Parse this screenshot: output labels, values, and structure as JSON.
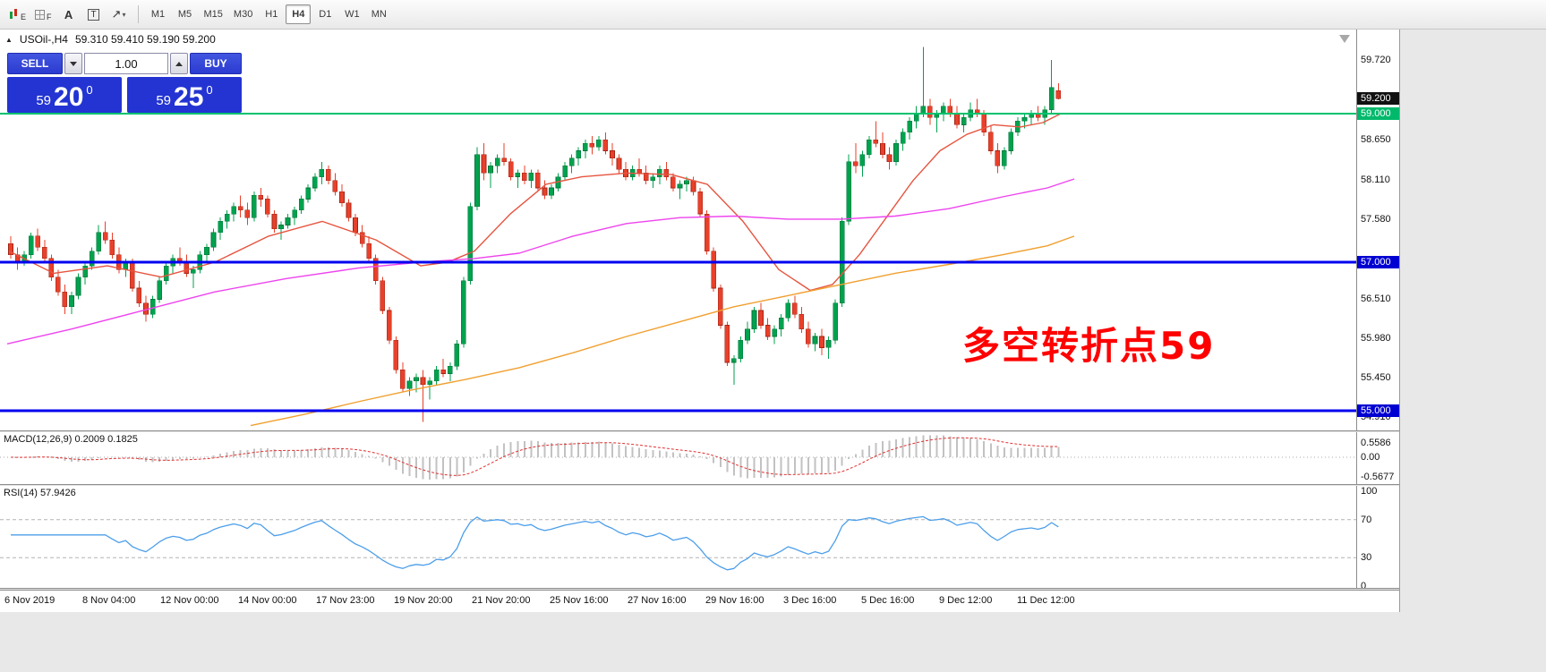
{
  "toolbar": {
    "icon_buttons": [
      {
        "name": "candle-chart-icon",
        "letter": "E"
      },
      {
        "name": "grid-icon",
        "letter": "F"
      },
      {
        "name": "text-tool-icon",
        "letter": "A"
      },
      {
        "name": "label-tool-icon",
        "letter": "T"
      },
      {
        "name": "arrow-tool-icon",
        "letter": "↗",
        "caret": "▾"
      }
    ],
    "timeframes": [
      "M1",
      "M5",
      "M15",
      "M30",
      "H1",
      "H4",
      "D1",
      "W1",
      "MN"
    ],
    "active_timeframe": "H4"
  },
  "chart": {
    "title": {
      "symbol": "USOil-,H4",
      "ohlc": "59.310 59.410 59.190 59.200"
    },
    "annotation": {
      "text": "多空转折点59",
      "color": "#ff0000"
    },
    "up_color": "#00A24E",
    "up_stroke": "#00753A",
    "down_color": "#E8402A",
    "down_stroke": "#A32315",
    "axis_ticks": [
      "59.720",
      "58.650",
      "58.110",
      "57.580",
      "56.510",
      "55.980",
      "55.450",
      "54.910"
    ],
    "current_price_badge": {
      "price": 59.2,
      "label": "59.200",
      "bg": "#111111"
    },
    "hlines": [
      {
        "price": 59.0,
        "label": "59.000",
        "color": "#00C26E",
        "badge_bg": "#00B96B",
        "width": 2
      },
      {
        "price": 57.0,
        "label": "57.000",
        "color": "#0000F0",
        "badge_bg": "#0000D2",
        "width": 2.6
      },
      {
        "price": 55.0,
        "label": "55.000",
        "color": "#0000F0",
        "badge_bg": "#0000D2",
        "width": 2.6
      }
    ],
    "ma_lines": [
      {
        "name": "ma-fast-red",
        "color": "#E65540",
        "points": [
          [
            10,
            57.15
          ],
          [
            60,
            56.85
          ],
          [
            120,
            56.95
          ],
          [
            180,
            56.8
          ],
          [
            240,
            57.0
          ],
          [
            300,
            57.35
          ],
          [
            360,
            57.55
          ],
          [
            420,
            57.3
          ],
          [
            470,
            56.95
          ],
          [
            500,
            57.0
          ],
          [
            530,
            57.15
          ],
          [
            570,
            57.65
          ],
          [
            610,
            58.05
          ],
          [
            650,
            58.15
          ],
          [
            700,
            58.2
          ],
          [
            750,
            58.18
          ],
          [
            790,
            58.05
          ],
          [
            830,
            57.55
          ],
          [
            870,
            56.9
          ],
          [
            905,
            56.62
          ],
          [
            930,
            56.7
          ],
          [
            960,
            57.1
          ],
          [
            990,
            57.6
          ],
          [
            1020,
            58.1
          ],
          [
            1050,
            58.5
          ],
          [
            1080,
            58.72
          ],
          [
            1110,
            58.85
          ],
          [
            1140,
            58.82
          ],
          [
            1165,
            58.88
          ],
          [
            1185,
            59.0
          ]
        ]
      },
      {
        "name": "ma-mid-magenta",
        "color": "#EE44EE",
        "points": [
          [
            8,
            55.9
          ],
          [
            80,
            56.1
          ],
          [
            160,
            56.35
          ],
          [
            240,
            56.6
          ],
          [
            320,
            56.78
          ],
          [
            400,
            56.92
          ],
          [
            470,
            57.0
          ],
          [
            530,
            57.05
          ],
          [
            580,
            57.12
          ],
          [
            640,
            57.35
          ],
          [
            700,
            57.52
          ],
          [
            760,
            57.6
          ],
          [
            820,
            57.62
          ],
          [
            880,
            57.58
          ],
          [
            940,
            57.58
          ],
          [
            1000,
            57.62
          ],
          [
            1060,
            57.72
          ],
          [
            1120,
            57.88
          ],
          [
            1170,
            58.0
          ],
          [
            1200,
            58.12
          ]
        ]
      },
      {
        "name": "ma-slow-orange",
        "color": "#F0A030",
        "points": [
          [
            280,
            54.8
          ],
          [
            340,
            54.95
          ],
          [
            400,
            55.12
          ],
          [
            460,
            55.28
          ],
          [
            520,
            55.42
          ],
          [
            580,
            55.58
          ],
          [
            640,
            55.78
          ],
          [
            700,
            56.0
          ],
          [
            760,
            56.2
          ],
          [
            820,
            56.4
          ],
          [
            880,
            56.55
          ],
          [
            940,
            56.7
          ],
          [
            1000,
            56.85
          ],
          [
            1060,
            56.97
          ],
          [
            1120,
            57.1
          ],
          [
            1170,
            57.22
          ],
          [
            1200,
            57.35
          ]
        ]
      }
    ],
    "candles": [
      [
        57.25,
        57.35,
        57.05,
        57.1
      ],
      [
        57.1,
        57.2,
        56.9,
        57.0
      ],
      [
        57.0,
        57.15,
        56.95,
        57.1
      ],
      [
        57.1,
        57.4,
        57.05,
        57.35
      ],
      [
        57.35,
        57.45,
        57.15,
        57.2
      ],
      [
        57.2,
        57.3,
        57.0,
        57.05
      ],
      [
        57.05,
        57.1,
        56.75,
        56.8
      ],
      [
        56.8,
        56.9,
        56.55,
        56.6
      ],
      [
        56.6,
        56.7,
        56.3,
        56.4
      ],
      [
        56.4,
        56.6,
        56.3,
        56.55
      ],
      [
        56.55,
        56.85,
        56.5,
        56.8
      ],
      [
        56.8,
        57.0,
        56.7,
        56.95
      ],
      [
        56.95,
        57.2,
        56.9,
        57.15
      ],
      [
        57.15,
        57.5,
        57.1,
        57.4
      ],
      [
        57.4,
        57.55,
        57.25,
        57.3
      ],
      [
        57.3,
        57.4,
        57.05,
        57.1
      ],
      [
        57.1,
        57.2,
        56.85,
        56.9
      ],
      [
        56.9,
        57.05,
        56.8,
        57.0
      ],
      [
        57.0,
        57.05,
        56.6,
        56.65
      ],
      [
        56.65,
        56.75,
        56.4,
        56.45
      ],
      [
        56.45,
        56.55,
        56.2,
        56.3
      ],
      [
        56.3,
        56.55,
        56.25,
        56.5
      ],
      [
        56.5,
        56.8,
        56.45,
        56.75
      ],
      [
        56.75,
        57.0,
        56.7,
        56.95
      ],
      [
        56.95,
        57.1,
        56.85,
        57.05
      ],
      [
        57.05,
        57.2,
        56.95,
        57.0
      ],
      [
        57.0,
        57.1,
        56.8,
        56.85
      ],
      [
        56.85,
        56.95,
        56.65,
        56.9
      ],
      [
        56.9,
        57.15,
        56.85,
        57.1
      ],
      [
        57.1,
        57.25,
        57.0,
        57.2
      ],
      [
        57.2,
        57.45,
        57.15,
        57.4
      ],
      [
        57.4,
        57.6,
        57.3,
        57.55
      ],
      [
        57.55,
        57.7,
        57.45,
        57.65
      ],
      [
        57.65,
        57.8,
        57.55,
        57.75
      ],
      [
        57.75,
        57.9,
        57.6,
        57.7
      ],
      [
        57.7,
        57.8,
        57.5,
        57.6
      ],
      [
        57.6,
        57.95,
        57.55,
        57.9
      ],
      [
        57.9,
        58.0,
        57.75,
        57.85
      ],
      [
        57.85,
        57.9,
        57.6,
        57.65
      ],
      [
        57.65,
        57.7,
        57.4,
        57.45
      ],
      [
        57.45,
        57.55,
        57.3,
        57.5
      ],
      [
        57.5,
        57.65,
        57.45,
        57.6
      ],
      [
        57.6,
        57.75,
        57.5,
        57.7
      ],
      [
        57.7,
        57.9,
        57.65,
        57.85
      ],
      [
        57.85,
        58.05,
        57.8,
        58.0
      ],
      [
        58.0,
        58.2,
        57.95,
        58.15
      ],
      [
        58.15,
        58.35,
        58.05,
        58.25
      ],
      [
        58.25,
        58.3,
        58.05,
        58.1
      ],
      [
        58.1,
        58.2,
        57.9,
        57.95
      ],
      [
        57.95,
        58.05,
        57.75,
        57.8
      ],
      [
        57.8,
        57.85,
        57.55,
        57.6
      ],
      [
        57.6,
        57.65,
        57.35,
        57.4
      ],
      [
        57.4,
        57.5,
        57.2,
        57.25
      ],
      [
        57.25,
        57.35,
        57.0,
        57.05
      ],
      [
        57.05,
        57.1,
        56.7,
        56.75
      ],
      [
        56.75,
        56.8,
        56.3,
        56.35
      ],
      [
        56.35,
        56.4,
        55.9,
        55.95
      ],
      [
        55.95,
        56.0,
        55.5,
        55.55
      ],
      [
        55.55,
        55.65,
        55.25,
        55.3
      ],
      [
        55.3,
        55.45,
        55.2,
        55.4
      ],
      [
        55.4,
        55.5,
        55.25,
        55.45
      ],
      [
        55.45,
        55.55,
        54.85,
        55.35
      ],
      [
        55.35,
        55.45,
        55.15,
        55.4
      ],
      [
        55.4,
        55.6,
        55.35,
        55.55
      ],
      [
        55.55,
        55.7,
        55.45,
        55.5
      ],
      [
        55.5,
        55.65,
        55.4,
        55.6
      ],
      [
        55.6,
        55.95,
        55.55,
        55.9
      ],
      [
        55.9,
        56.8,
        55.85,
        56.75
      ],
      [
        56.75,
        57.8,
        56.7,
        57.75
      ],
      [
        57.75,
        58.55,
        57.7,
        58.45
      ],
      [
        58.45,
        58.6,
        58.1,
        58.2
      ],
      [
        58.2,
        58.35,
        58.0,
        58.3
      ],
      [
        58.3,
        58.45,
        58.2,
        58.4
      ],
      [
        58.4,
        58.6,
        58.3,
        58.35
      ],
      [
        58.35,
        58.4,
        58.1,
        58.15
      ],
      [
        58.15,
        58.25,
        58.0,
        58.2
      ],
      [
        58.2,
        58.3,
        58.05,
        58.1
      ],
      [
        58.1,
        58.25,
        58.0,
        58.2
      ],
      [
        58.2,
        58.25,
        57.95,
        58.0
      ],
      [
        58.0,
        58.1,
        57.85,
        57.9
      ],
      [
        57.9,
        58.05,
        57.85,
        58.0
      ],
      [
        58.0,
        58.2,
        57.95,
        58.15
      ],
      [
        58.15,
        58.35,
        58.1,
        58.3
      ],
      [
        58.3,
        58.45,
        58.2,
        58.4
      ],
      [
        58.4,
        58.55,
        58.3,
        58.5
      ],
      [
        58.5,
        58.65,
        58.4,
        58.6
      ],
      [
        58.6,
        58.7,
        58.45,
        58.55
      ],
      [
        58.55,
        58.7,
        58.5,
        58.65
      ],
      [
        58.65,
        58.75,
        58.45,
        58.5
      ],
      [
        58.5,
        58.6,
        58.3,
        58.4
      ],
      [
        58.4,
        58.45,
        58.2,
        58.25
      ],
      [
        58.25,
        58.35,
        58.1,
        58.15
      ],
      [
        58.15,
        58.3,
        58.1,
        58.25
      ],
      [
        58.25,
        58.4,
        58.15,
        58.2
      ],
      [
        58.2,
        58.3,
        58.05,
        58.1
      ],
      [
        58.1,
        58.2,
        58.0,
        58.15
      ],
      [
        58.15,
        58.3,
        58.05,
        58.25
      ],
      [
        58.25,
        58.35,
        58.1,
        58.15
      ],
      [
        58.15,
        58.2,
        57.95,
        58.0
      ],
      [
        58.0,
        58.1,
        57.85,
        58.05
      ],
      [
        58.05,
        58.15,
        57.95,
        58.1
      ],
      [
        58.1,
        58.15,
        57.9,
        57.95
      ],
      [
        57.95,
        58.0,
        57.6,
        57.65
      ],
      [
        57.65,
        57.7,
        57.1,
        57.15
      ],
      [
        57.15,
        57.2,
        56.6,
        56.65
      ],
      [
        56.65,
        56.7,
        56.1,
        56.15
      ],
      [
        56.15,
        56.2,
        55.6,
        55.65
      ],
      [
        55.65,
        55.75,
        55.35,
        55.7
      ],
      [
        55.7,
        56.0,
        55.65,
        55.95
      ],
      [
        55.95,
        56.2,
        55.9,
        56.1
      ],
      [
        56.1,
        56.4,
        56.05,
        56.35
      ],
      [
        56.35,
        56.45,
        56.1,
        56.15
      ],
      [
        56.15,
        56.25,
        55.95,
        56.0
      ],
      [
        56.0,
        56.15,
        55.9,
        56.1
      ],
      [
        56.1,
        56.3,
        56.0,
        56.25
      ],
      [
        56.25,
        56.5,
        56.2,
        56.45
      ],
      [
        56.45,
        56.55,
        56.25,
        56.3
      ],
      [
        56.3,
        56.4,
        56.05,
        56.1
      ],
      [
        56.1,
        56.2,
        55.85,
        55.9
      ],
      [
        55.9,
        56.05,
        55.8,
        56.0
      ],
      [
        56.0,
        56.1,
        55.75,
        55.85
      ],
      [
        55.85,
        56.0,
        55.7,
        55.95
      ],
      [
        55.95,
        56.5,
        55.9,
        56.45
      ],
      [
        56.45,
        57.6,
        56.4,
        57.55
      ],
      [
        57.55,
        58.45,
        57.5,
        58.35
      ],
      [
        58.35,
        58.6,
        58.2,
        58.3
      ],
      [
        58.3,
        58.5,
        58.15,
        58.45
      ],
      [
        58.45,
        58.7,
        58.4,
        58.65
      ],
      [
        58.65,
        58.9,
        58.55,
        58.6
      ],
      [
        58.6,
        58.75,
        58.4,
        58.45
      ],
      [
        58.45,
        58.55,
        58.25,
        58.35
      ],
      [
        58.35,
        58.65,
        58.3,
        58.6
      ],
      [
        58.6,
        58.8,
        58.5,
        58.75
      ],
      [
        58.75,
        58.95,
        58.65,
        58.9
      ],
      [
        58.9,
        59.1,
        58.8,
        59.0
      ],
      [
        59.0,
        59.9,
        58.95,
        59.1
      ],
      [
        59.1,
        59.2,
        58.85,
        58.95
      ],
      [
        58.95,
        59.05,
        58.75,
        59.0
      ],
      [
        59.0,
        59.15,
        58.9,
        59.1
      ],
      [
        59.1,
        59.2,
        58.95,
        59.0
      ],
      [
        59.0,
        59.1,
        58.8,
        58.85
      ],
      [
        58.85,
        59.0,
        58.75,
        58.95
      ],
      [
        58.95,
        59.15,
        58.9,
        59.05
      ],
      [
        59.05,
        59.2,
        58.95,
        59.0
      ],
      [
        59.0,
        59.05,
        58.7,
        58.75
      ],
      [
        58.75,
        58.85,
        58.45,
        58.5
      ],
      [
        58.5,
        58.6,
        58.2,
        58.3
      ],
      [
        58.3,
        58.55,
        58.25,
        58.5
      ],
      [
        58.5,
        58.8,
        58.45,
        58.75
      ],
      [
        58.75,
        58.95,
        58.7,
        58.9
      ],
      [
        58.9,
        59.0,
        58.8,
        58.95
      ],
      [
        58.95,
        59.05,
        58.85,
        59.0
      ],
      [
        59.0,
        59.1,
        58.9,
        58.95
      ],
      [
        58.95,
        59.1,
        58.85,
        59.05
      ],
      [
        59.05,
        59.72,
        59.0,
        59.35
      ],
      [
        59.31,
        59.41,
        59.19,
        59.2
      ]
    ]
  },
  "trade_panel": {
    "sell_label": "SELL",
    "buy_label": "BUY",
    "quantity": "1.00",
    "sell_price": {
      "small": "59",
      "big": "20",
      "sup": "0"
    },
    "buy_price": {
      "small": "59",
      "big": "25",
      "sup": "0"
    }
  },
  "macd": {
    "label": "MACD(12,26,9) 0.2009 0.1825",
    "axis": [
      "0.5586",
      "0.00",
      "-0.5677"
    ],
    "fast": 12,
    "slow": 26,
    "signal": 9,
    "hist_color": "#c2c2c2",
    "signal_color": "#E03030"
  },
  "rsi": {
    "label": "RSI(14) 57.9426",
    "axis": [
      "100",
      "70",
      "30",
      "0"
    ],
    "period": 14,
    "levels": [
      70,
      30
    ],
    "line_color": "#4C9EEA"
  },
  "time_axis": [
    "6 Nov 2019",
    "8 Nov 04:00",
    "12 Nov 00:00",
    "14 Nov 00:00",
    "17 Nov 23:00",
    "19 Nov 20:00",
    "21 Nov 20:00",
    "25 Nov 16:00",
    "27 Nov 16:00",
    "29 Nov 16:00",
    "3 Dec 16:00",
    "5 Dec 16:00",
    "9 Dec 12:00",
    "11 Dec 12:00"
  ]
}
